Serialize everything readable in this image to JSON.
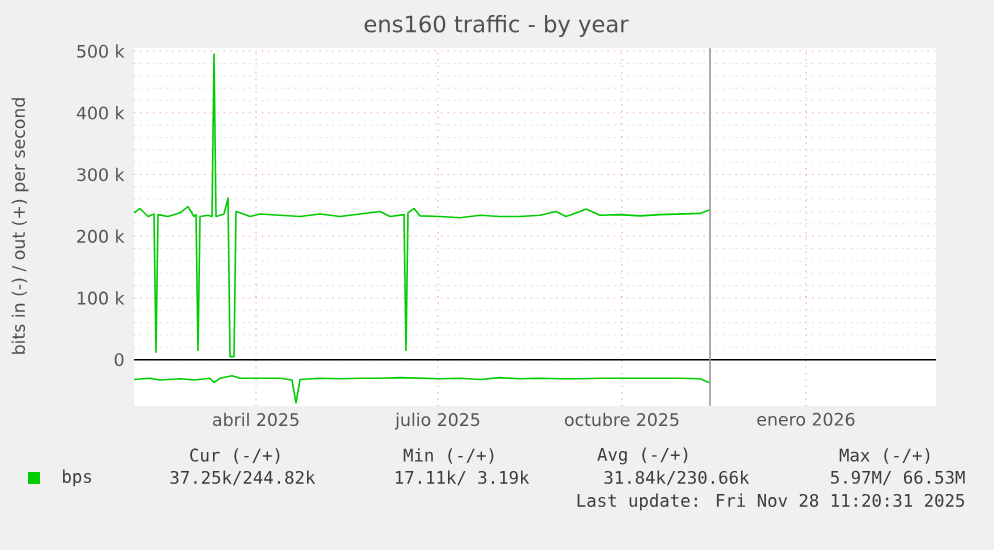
{
  "chart_data": {
    "type": "line",
    "title": "ens160 traffic - by year",
    "ylabel": "bits in (-) / out (+) per second",
    "xlim": [
      "2025-02-13",
      "2026-03-21"
    ],
    "xticks": [
      {
        "value": "2025-04-15",
        "label": "abril 2025"
      },
      {
        "value": "2025-07-15",
        "label": "julio 2025"
      },
      {
        "value": "2025-10-15",
        "label": "octubre 2025"
      },
      {
        "value": "2026-01-15",
        "label": "enero 2026"
      }
    ],
    "ylim": [
      -75000,
      505000
    ],
    "yticks": [
      {
        "value": 0,
        "label": "0"
      },
      {
        "value": 100000,
        "label": "100 k"
      },
      {
        "value": 200000,
        "label": "200 k"
      },
      {
        "value": 300000,
        "label": "300 k"
      },
      {
        "value": 400000,
        "label": "400 k"
      },
      {
        "value": 500000,
        "label": "500 k"
      }
    ],
    "grid": true,
    "legend": "bottom",
    "marker": "none",
    "line_style": "solid",
    "series": [
      {
        "name": "bps",
        "color": "#00cc00",
        "x": [
          "2025-02-13",
          "2025-02-16",
          "2025-02-20",
          "2025-02-23",
          "2025-02-24",
          "2025-02-25",
          "2025-03-02",
          "2025-03-08",
          "2025-03-12",
          "2025-03-15",
          "2025-03-16",
          "2025-03-17",
          "2025-03-18",
          "2025-03-22",
          "2025-03-24",
          "2025-03-25",
          "2025-03-26",
          "2025-03-30",
          "2025-04-01",
          "2025-04-02",
          "2025-04-04",
          "2025-04-05",
          "2025-04-07",
          "2025-04-12",
          "2025-04-17",
          "2025-04-27",
          "2025-05-07",
          "2025-05-17",
          "2025-05-27",
          "2025-06-06",
          "2025-06-16",
          "2025-06-21",
          "2025-06-28",
          "2025-06-29",
          "2025-06-30",
          "2025-07-03",
          "2025-07-06",
          "2025-07-16",
          "2025-07-26",
          "2025-08-05",
          "2025-08-15",
          "2025-08-25",
          "2025-09-04",
          "2025-09-12",
          "2025-09-17",
          "2025-09-24",
          "2025-09-27",
          "2025-10-04",
          "2025-10-14",
          "2025-10-24",
          "2025-11-03",
          "2025-11-13",
          "2025-11-23",
          "2025-11-28"
        ],
        "values": [
          238000,
          245000,
          232000,
          236000,
          12000,
          235000,
          232000,
          238000,
          248000,
          232000,
          235000,
          15000,
          232000,
          234000,
          232000,
          495000,
          232000,
          236000,
          262000,
          5000,
          5000,
          240000,
          238000,
          232000,
          236000,
          234000,
          232000,
          236000,
          232000,
          236000,
          240000,
          232000,
          235000,
          15000,
          238000,
          245000,
          233000,
          232000,
          230000,
          234000,
          232000,
          232000,
          234000,
          240000,
          232000,
          240000,
          244000,
          234000,
          235000,
          233000,
          235000,
          236000,
          237000,
          243000
        ]
      },
      {
        "color": "#00cc00",
        "x": [
          "2025-02-13",
          "2025-02-21",
          "2025-02-26",
          "2025-03-08",
          "2025-03-15",
          "2025-03-23",
          "2025-03-25",
          "2025-03-28",
          "2025-04-03",
          "2025-04-07",
          "2025-04-17",
          "2025-04-27",
          "2025-05-03",
          "2025-05-05",
          "2025-05-07",
          "2025-05-17",
          "2025-05-27",
          "2025-06-06",
          "2025-06-16",
          "2025-06-26",
          "2025-07-06",
          "2025-07-16",
          "2025-07-26",
          "2025-08-05",
          "2025-08-15",
          "2025-08-25",
          "2025-09-04",
          "2025-09-14",
          "2025-09-24",
          "2025-10-04",
          "2025-10-14",
          "2025-10-24",
          "2025-11-03",
          "2025-11-13",
          "2025-11-23",
          "2025-11-26",
          "2025-11-28"
        ],
        "values": [
          -32000,
          -30000,
          -33000,
          -31000,
          -33000,
          -30000,
          -37000,
          -30000,
          -26000,
          -30000,
          -30000,
          -30000,
          -33000,
          -70000,
          -32000,
          -30000,
          -31000,
          -30000,
          -30000,
          -29000,
          -30000,
          -31000,
          -30000,
          -32000,
          -29000,
          -31000,
          -30000,
          -31000,
          -31000,
          -30000,
          -30000,
          -30000,
          -30000,
          -30000,
          -31000,
          -35000,
          -38000
        ]
      }
    ],
    "ref_lines": [
      {
        "axis": "y",
        "value": 0,
        "color": "#000000"
      },
      {
        "axis": "x",
        "value": "2025-11-28",
        "color": "#999999"
      }
    ],
    "annotations": [
      "Cur (-/+)",
      "Min (-/+)",
      "Avg (-/+)",
      "Max (-/+)",
      "37.25k/244.82k",
      "17.11k/  3.19k",
      "31.84k/230.66k",
      "5.97M/ 66.53M",
      "Last update: Fri Nov 28 11:20:31 2025"
    ]
  }
}
